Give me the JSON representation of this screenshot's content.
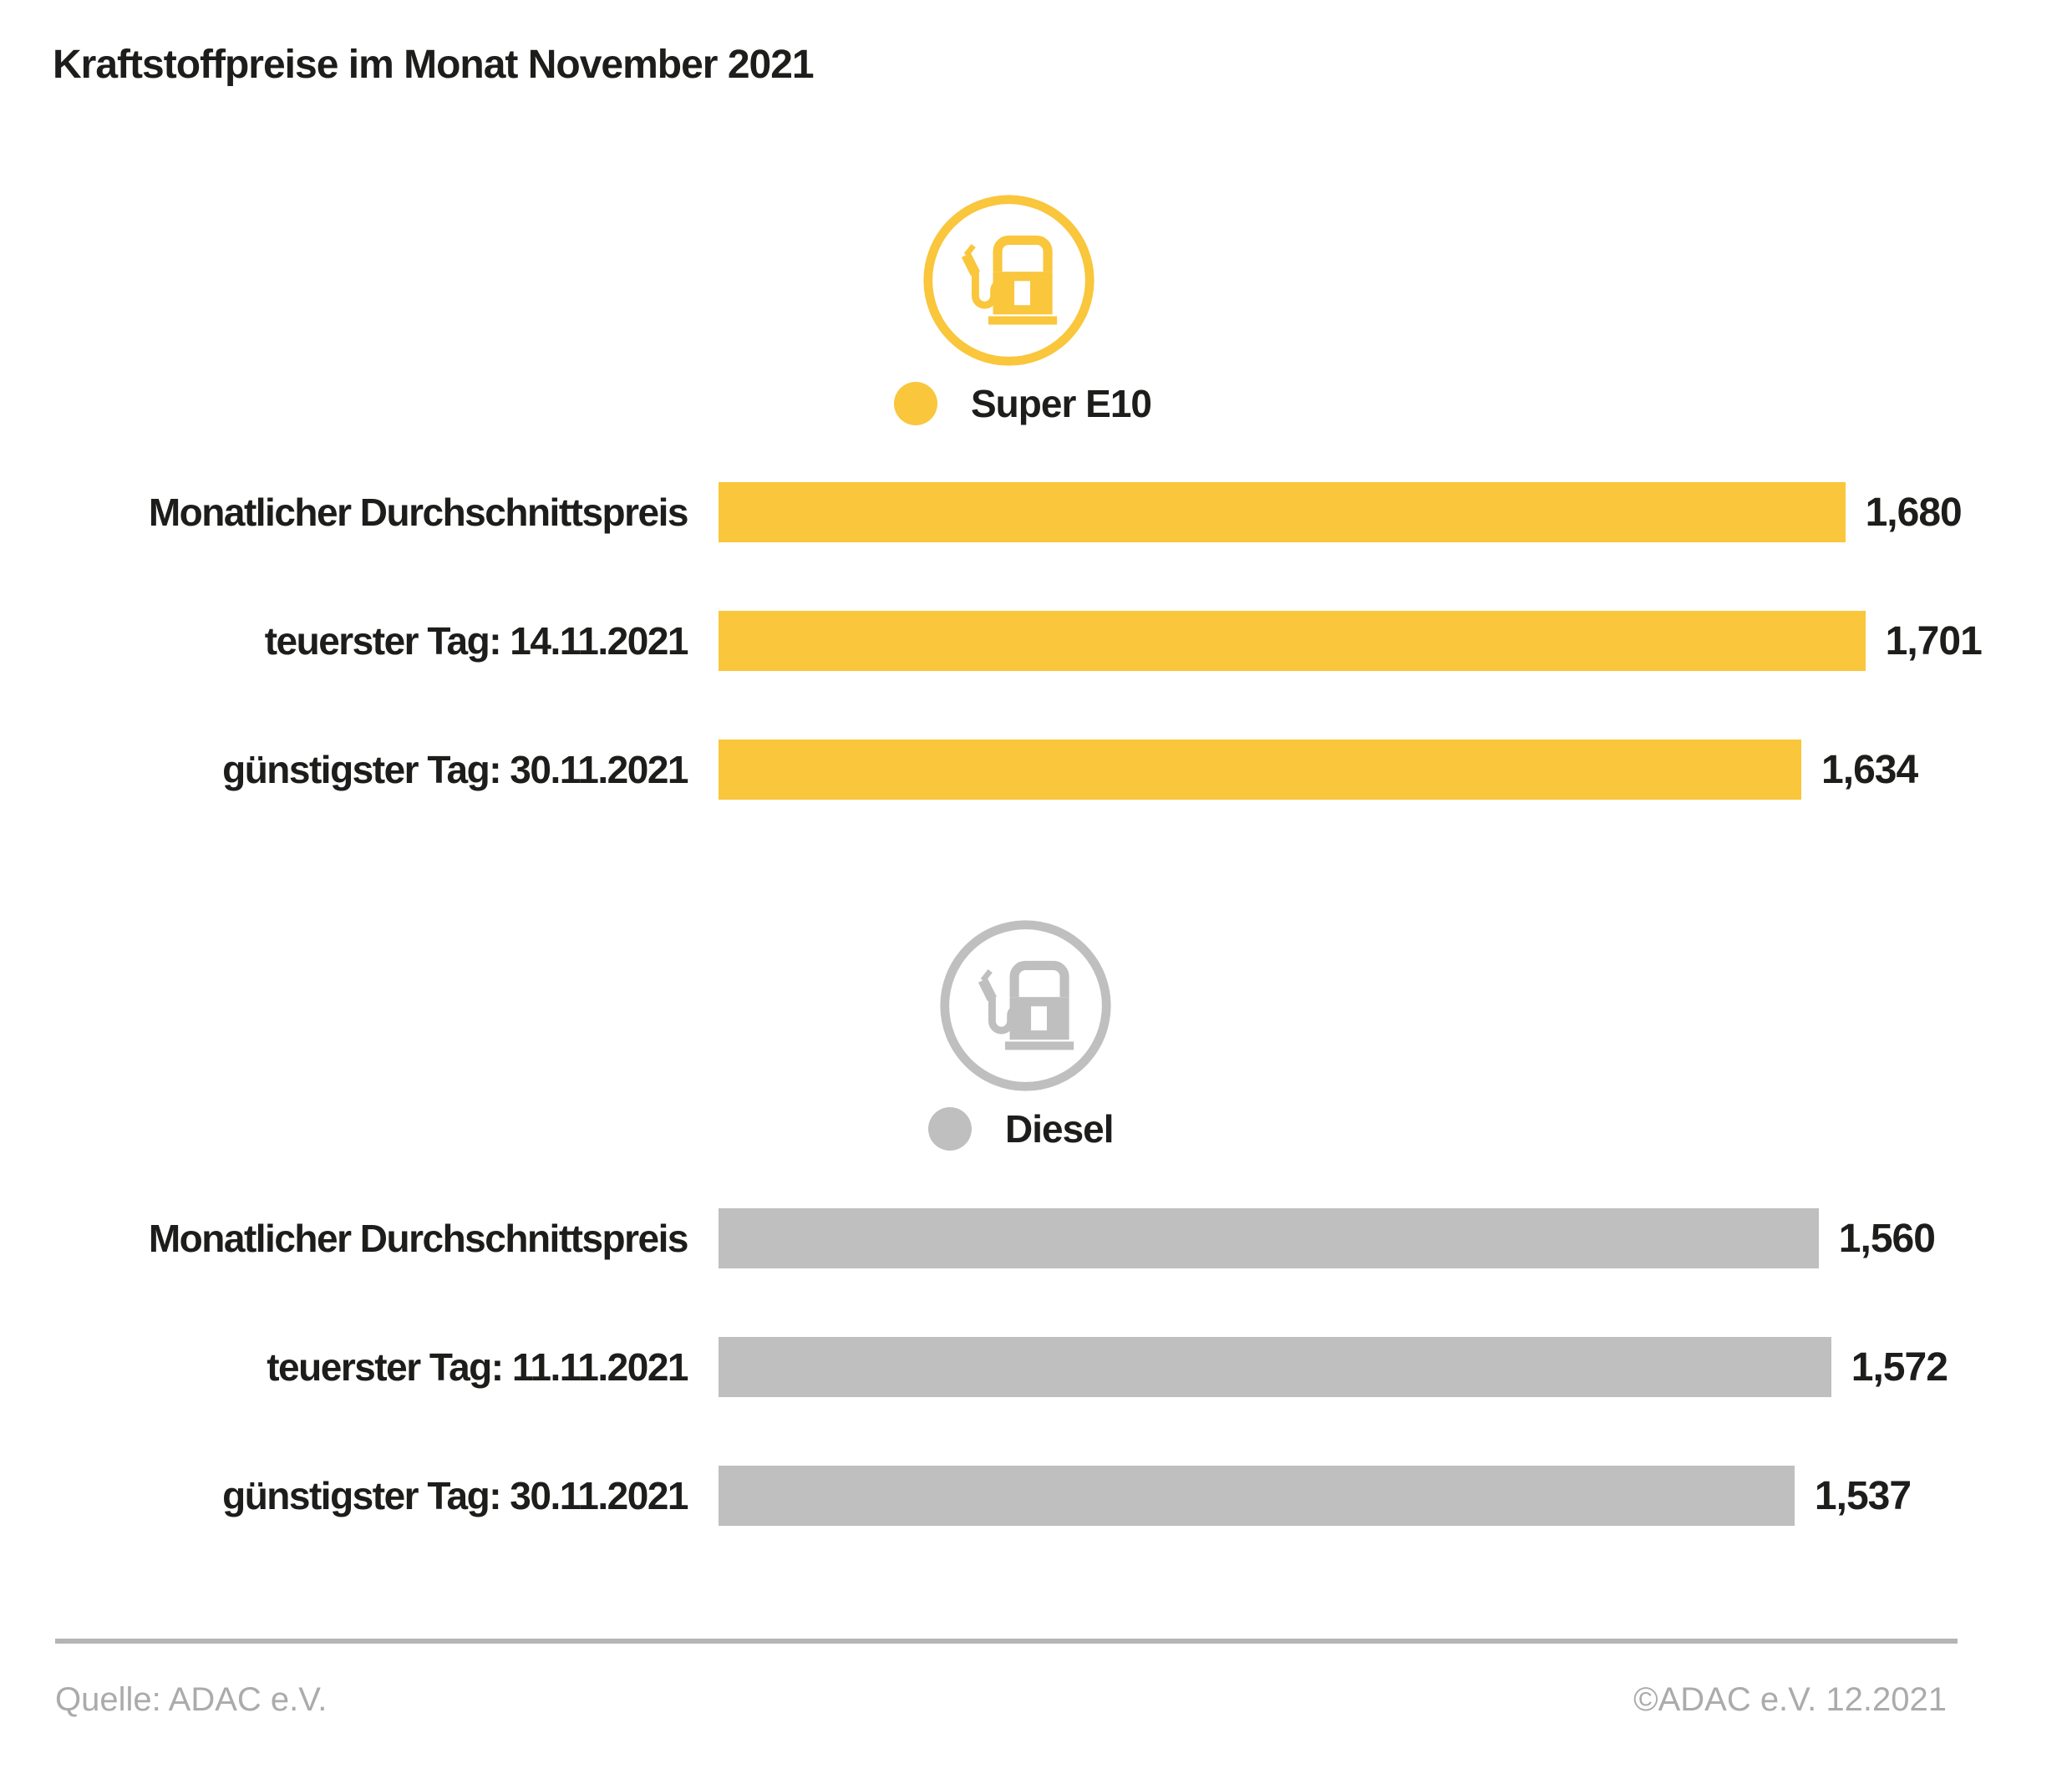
{
  "title": "Kraftstoffpreise im Monat November 2021",
  "colors": {
    "super_e10": "#F9C63C",
    "diesel": "#BFBFBF",
    "text": "#1D1D1B",
    "muted_text": "#ABABAB",
    "divider": "#B5B5B5",
    "background": "#FFFFFF"
  },
  "footer": {
    "source": "Quelle: ADAC e.V.",
    "copyright": "©ADAC e.V. 12.2021"
  },
  "chart_data": [
    {
      "type": "bar",
      "orientation": "horizontal",
      "legend_label": "Super E10",
      "legend_position": "top-center",
      "icon": "fuel-pump-icon",
      "color_key": "super_e10",
      "unit_note": "Preis in Euro, Anzeige mit Komma",
      "categories": [
        "Monatlicher Durchschnittspreis",
        "teuerster Tag: 14.11.2021",
        "günstigster Tag: 30.11.2021"
      ],
      "values": [
        1.68,
        1.701,
        1.634
      ],
      "value_labels": [
        "1,680",
        "1,701",
        "1,634"
      ],
      "axis": {
        "min": 0.5,
        "max": 1.865
      },
      "grid": false
    },
    {
      "type": "bar",
      "orientation": "horizontal",
      "legend_label": "Diesel",
      "legend_position": "top-center",
      "icon": "fuel-pump-icon",
      "color_key": "diesel",
      "unit_note": "Preis in Euro, Anzeige mit Komma",
      "categories": [
        "Monatlicher Durchschnittspreis",
        "teuerster Tag: 11.11.2021",
        "günstigster Tag: 30.11.2021"
      ],
      "values": [
        1.56,
        1.572,
        1.537
      ],
      "value_labels": [
        "1,560",
        "1,572",
        "1,537"
      ],
      "axis": {
        "min": 0.51,
        "max": 1.754
      },
      "grid": false
    }
  ]
}
